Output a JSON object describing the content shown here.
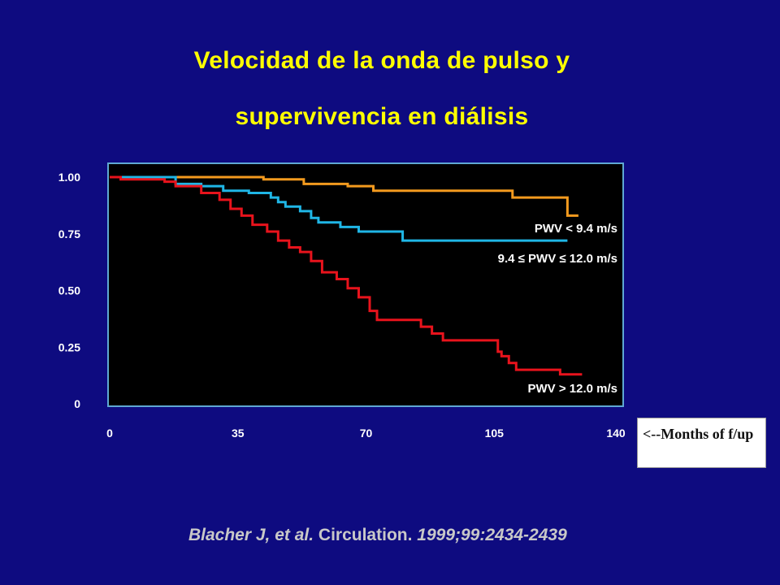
{
  "title": {
    "line1": "Velocidad de la onda de pulso y",
    "line2": "supervivencia en diálisis"
  },
  "note": {
    "text": "<--Months of f/up"
  },
  "citation": {
    "authors": "Blacher J, et al.",
    "journal": "Circulation.",
    "ref": "1999;99:2434-2439"
  },
  "colors": {
    "background": "#0e0b80",
    "plot_background": "#000000",
    "plot_border": "#5fa8d3",
    "title": "#ffff00",
    "orange": "#f39a1e",
    "cyan": "#1fb6e6",
    "red": "#e8131c"
  },
  "chart_data": {
    "type": "line",
    "step": true,
    "title": "",
    "xlabel": "",
    "ylabel": "",
    "xlim": [
      0,
      140
    ],
    "ylim": [
      0,
      1.0
    ],
    "x_ticks": [
      {
        "v": 0,
        "label": "0"
      },
      {
        "v": 35,
        "label": "35"
      },
      {
        "v": 70,
        "label": "70"
      },
      {
        "v": 105,
        "label": "105"
      },
      {
        "v": 140,
        "label": "140"
      }
    ],
    "y_ticks": [
      {
        "v": 1.0,
        "label": "1.00"
      },
      {
        "v": 0.75,
        "label": "0.75"
      },
      {
        "v": 0.5,
        "label": "0.50"
      },
      {
        "v": 0.25,
        "label": "0.25"
      },
      {
        "v": 0,
        "label": "0"
      }
    ],
    "series": [
      {
        "name": "PWV < 9.4 m/s",
        "color": "#f39a1e",
        "points": [
          [
            0,
            1.0
          ],
          [
            42,
            1.0
          ],
          [
            42,
            0.99
          ],
          [
            53,
            0.99
          ],
          [
            53,
            0.97
          ],
          [
            65,
            0.97
          ],
          [
            65,
            0.96
          ],
          [
            72,
            0.96
          ],
          [
            72,
            0.94
          ],
          [
            110,
            0.94
          ],
          [
            110,
            0.91
          ],
          [
            125,
            0.91
          ],
          [
            125,
            0.83
          ],
          [
            128,
            0.83
          ]
        ]
      },
      {
        "name": "9.4 ≤ PWV ≤ 12.0 m/s",
        "color": "#1fb6e6",
        "points": [
          [
            0,
            1.0
          ],
          [
            18,
            1.0
          ],
          [
            18,
            0.97
          ],
          [
            25,
            0.97
          ],
          [
            25,
            0.96
          ],
          [
            31,
            0.96
          ],
          [
            31,
            0.94
          ],
          [
            38,
            0.94
          ],
          [
            38,
            0.93
          ],
          [
            44,
            0.93
          ],
          [
            44,
            0.91
          ],
          [
            46,
            0.91
          ],
          [
            46,
            0.89
          ],
          [
            48,
            0.89
          ],
          [
            48,
            0.87
          ],
          [
            52,
            0.87
          ],
          [
            52,
            0.85
          ],
          [
            55,
            0.85
          ],
          [
            55,
            0.82
          ],
          [
            57,
            0.82
          ],
          [
            57,
            0.8
          ],
          [
            63,
            0.8
          ],
          [
            63,
            0.78
          ],
          [
            68,
            0.78
          ],
          [
            68,
            0.76
          ],
          [
            80,
            0.76
          ],
          [
            80,
            0.72
          ],
          [
            125,
            0.72
          ]
        ]
      },
      {
        "name": "PWV > 12.0 m/s",
        "color": "#e8131c",
        "points": [
          [
            0,
            1.0
          ],
          [
            3,
            1.0
          ],
          [
            3,
            0.99
          ],
          [
            15,
            0.99
          ],
          [
            15,
            0.98
          ],
          [
            18,
            0.98
          ],
          [
            18,
            0.96
          ],
          [
            25,
            0.96
          ],
          [
            25,
            0.93
          ],
          [
            30,
            0.93
          ],
          [
            30,
            0.9
          ],
          [
            33,
            0.9
          ],
          [
            33,
            0.86
          ],
          [
            36,
            0.86
          ],
          [
            36,
            0.83
          ],
          [
            39,
            0.83
          ],
          [
            39,
            0.79
          ],
          [
            43,
            0.79
          ],
          [
            43,
            0.76
          ],
          [
            46,
            0.76
          ],
          [
            46,
            0.72
          ],
          [
            49,
            0.72
          ],
          [
            49,
            0.69
          ],
          [
            52,
            0.69
          ],
          [
            52,
            0.67
          ],
          [
            55,
            0.67
          ],
          [
            55,
            0.63
          ],
          [
            58,
            0.63
          ],
          [
            58,
            0.58
          ],
          [
            62,
            0.58
          ],
          [
            62,
            0.55
          ],
          [
            65,
            0.55
          ],
          [
            65,
            0.51
          ],
          [
            68,
            0.51
          ],
          [
            68,
            0.47
          ],
          [
            71,
            0.47
          ],
          [
            71,
            0.41
          ],
          [
            73,
            0.41
          ],
          [
            73,
            0.37
          ],
          [
            85,
            0.37
          ],
          [
            85,
            0.34
          ],
          [
            88,
            0.34
          ],
          [
            88,
            0.31
          ],
          [
            91,
            0.31
          ],
          [
            91,
            0.28
          ],
          [
            106,
            0.28
          ],
          [
            106,
            0.23
          ],
          [
            107,
            0.23
          ],
          [
            107,
            0.21
          ],
          [
            109,
            0.21
          ],
          [
            109,
            0.18
          ],
          [
            111,
            0.18
          ],
          [
            111,
            0.15
          ],
          [
            123,
            0.15
          ],
          [
            123,
            0.13
          ],
          [
            129,
            0.13
          ]
        ]
      }
    ],
    "annotations": [
      {
        "series": "PWV < 9.4 m/s",
        "text": "PWV < 9.4 m/s"
      },
      {
        "series": "9.4 ≤ PWV ≤ 12.0 m/s",
        "text": "9.4 ≤ PWV ≤ 12.0 m/s"
      },
      {
        "series": "PWV > 12.0 m/s",
        "text": "PWV > 12.0 m/s"
      }
    ]
  }
}
